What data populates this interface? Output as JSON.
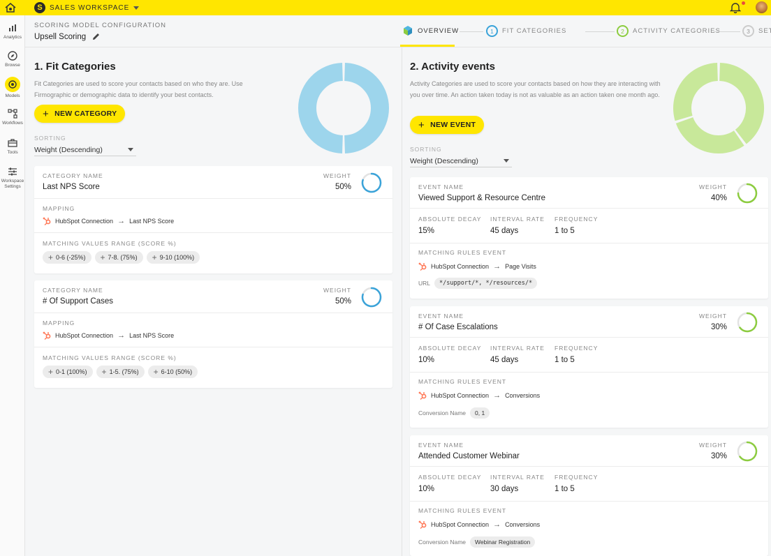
{
  "workspace": {
    "name": "SALES WORKSPACE"
  },
  "sidebar": {
    "items": [
      {
        "label": "Analytics"
      },
      {
        "label": "Browse"
      },
      {
        "label": "Models"
      },
      {
        "label": "Workflows"
      },
      {
        "label": "Tools"
      },
      {
        "label": "Workspace Settings"
      }
    ]
  },
  "config": {
    "label": "SCORING MODEL CONFIGURATION",
    "title": "Upsell Scoring"
  },
  "steps": [
    {
      "label": "OVERVIEW"
    },
    {
      "num": "1",
      "label": "FIT CATEGORIES"
    },
    {
      "num": "2",
      "label": "ACTIVITY CATEGORIES"
    },
    {
      "num": "3",
      "label": "SETTINGS"
    }
  ],
  "colors": {
    "accent": "#ffe600",
    "fit": "#9dd5ec",
    "activity": "#c8e89a",
    "ring_blue": "#3aa3d9",
    "ring_green": "#8ccc3f",
    "hubspot": "#ff7a59"
  },
  "fit": {
    "title": "1. Fit Categories",
    "desc": "Fit Categories are used to score your contacts based on who they are. Use Firmographic or demographic data to identify your best contacts.",
    "button": "NEW CATEGORY",
    "sorting_label": "SORTING",
    "sorting_value": "Weight (Descending)",
    "donut_segments": [
      50,
      50
    ],
    "cards": [
      {
        "name_label": "CATEGORY NAME",
        "name": "Last NPS Score",
        "weight_label": "WEIGHT",
        "weight": "50%",
        "weight_fraction": 0.8,
        "mapping_label": "MAPPING",
        "source": "HubSpot Connection",
        "target": "Last NPS Score",
        "range_label": "MATCHING VALUES RANGE (SCORE %)",
        "ranges": [
          "0-6 (-25%)",
          "7-8. (75%)",
          "9-10 (100%)"
        ]
      },
      {
        "name_label": "CATEGORY NAME",
        "name": "# Of Support Cases",
        "weight_label": "WEIGHT",
        "weight": "50%",
        "weight_fraction": 0.8,
        "mapping_label": "MAPPING",
        "source": "HubSpot Connection",
        "target": "Last NPS Score",
        "range_label": "MATCHING VALUES RANGE (SCORE %)",
        "ranges": [
          "0-1 (100%)",
          "1-5. (75%)",
          "6-10 (50%)"
        ]
      }
    ]
  },
  "activity": {
    "title": "2. Activity events",
    "desc": "Activity Categories are used to score your contacts based on how they are interacting with you over time. An action taken today is not as valuable as an action taken one month ago.",
    "button": "NEW EVENT",
    "sorting_label": "SORTING",
    "sorting_value": "Weight (Descending)",
    "donut_segments": [
      40,
      30,
      30
    ],
    "events": [
      {
        "name_label": "EVENT NAME",
        "name": "Viewed Support & Resource Centre",
        "weight_label": "WEIGHT",
        "weight": "40%",
        "weight_fraction": 0.75,
        "decay_label": "ABSOLUTE DECAY",
        "decay": "15%",
        "interval_label": "INTERVAL RATE",
        "interval": "45 days",
        "freq_label": "FREQUENCY",
        "freq": "1 to 5",
        "rules_label": "MATCHING RULES EVENT",
        "source": "HubSpot Connection",
        "target": "Page Visits",
        "filter_key": "URL",
        "filter_value": "*/support/*, */resources/*"
      },
      {
        "name_label": "EVENT NAME",
        "name": "# Of Case Escalations",
        "weight_label": "WEIGHT",
        "weight": "30%",
        "weight_fraction": 0.65,
        "decay_label": "ABSOLUTE DECAY",
        "decay": "10%",
        "interval_label": "INTERVAL RATE",
        "interval": "45 days",
        "freq_label": "FREQUENCY",
        "freq": "1 to 5",
        "rules_label": "MATCHING RULES EVENT",
        "source": "HubSpot Connection",
        "target": "Conversions",
        "filter_key": "Conversion Name",
        "filter_value": "0, 1"
      },
      {
        "name_label": "EVENT NAME",
        "name": "Attended Customer Webinar",
        "weight_label": "WEIGHT",
        "weight": "30%",
        "weight_fraction": 0.65,
        "decay_label": "ABSOLUTE DECAY",
        "decay": "10%",
        "interval_label": "INTERVAL RATE",
        "interval": "30 days",
        "freq_label": "FREQUENCY",
        "freq": "1 to 5",
        "rules_label": "MATCHING RULES EVENT",
        "source": "HubSpot Connection",
        "target": "Conversions",
        "filter_key": "Conversion Name",
        "filter_value": "Webinar Registration"
      }
    ]
  }
}
